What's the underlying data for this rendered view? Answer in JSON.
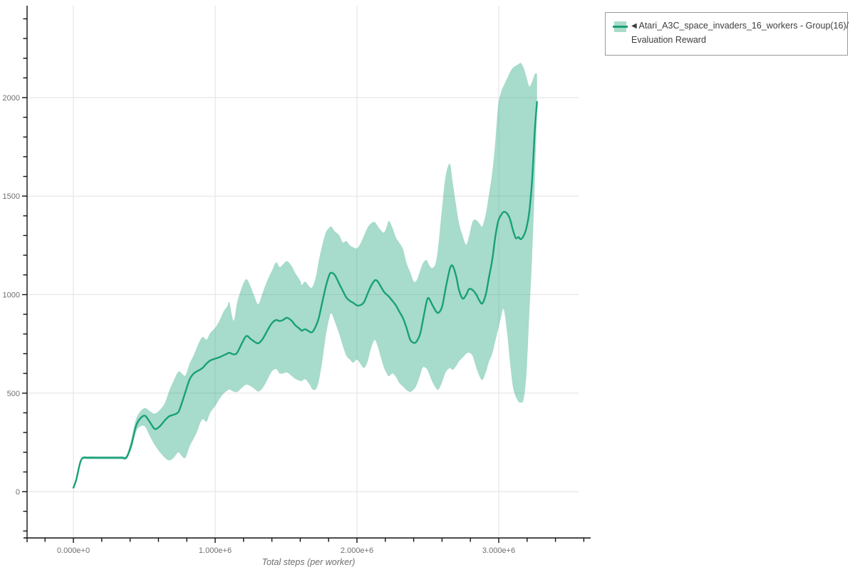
{
  "legend": {
    "marker": "◀",
    "series_label_line1": "Atari_A3C_space_invaders_16_workers - Group(16)/",
    "series_label_line2": "Evaluation Reward"
  },
  "colors": {
    "line": "#18a077",
    "band_fill": "#18a077",
    "band_opacity": 0.38,
    "swatch_band": "#a9dcc8",
    "grid": "#e2e2e2",
    "spine": "#111111",
    "tick_label": "#6f6f6f",
    "axis_title": "#6f6f6f",
    "legend_text": "#3d3d3d"
  },
  "chart_data": {
    "type": "line",
    "title": "",
    "xlabel": "Total steps (per worker)",
    "ylabel": "",
    "x_unit": "steps (values below in millions)",
    "xlim": [
      -0.33,
      3.65
    ],
    "ylim": [
      -235,
      2466
    ],
    "grid": true,
    "legend_position": "top-right-outside",
    "x_axis": {
      "major_ticks": [
        {
          "value": 0,
          "label": "0.000e+0"
        },
        {
          "value": 1,
          "label": "1.000e+6"
        },
        {
          "value": 2,
          "label": "2.000e+6"
        },
        {
          "value": 3,
          "label": "3.000e+6"
        }
      ],
      "minor_ticks": {
        "min": -0.2,
        "max": 3.6,
        "step": 0.2
      },
      "gridline_values": [
        0,
        1,
        2,
        3
      ]
    },
    "y_axis": {
      "major_ticks": [
        {
          "value": 0,
          "label": "0"
        },
        {
          "value": 500,
          "label": "500"
        },
        {
          "value": 1000,
          "label": "1000"
        },
        {
          "value": 1500,
          "label": "1500"
        },
        {
          "value": 2000,
          "label": "2000"
        }
      ],
      "minor_ticks": {
        "min": -200,
        "max": 2400,
        "step": 100
      },
      "gridline_values": [
        0,
        500,
        1000,
        1500,
        2000
      ]
    },
    "series": [
      {
        "name": "Atari_A3C_space_invaders_16_workers - Group(16)/Evaluation Reward",
        "x": [
          0.0,
          0.02,
          0.045,
          0.065,
          0.1,
          0.15,
          0.2,
          0.25,
          0.3,
          0.34,
          0.375,
          0.41,
          0.44,
          0.47,
          0.505,
          0.54,
          0.575,
          0.61,
          0.645,
          0.675,
          0.705,
          0.74,
          0.765,
          0.79,
          0.82,
          0.845,
          0.87,
          0.895,
          0.915,
          0.94,
          0.965,
          1.0,
          1.03,
          1.06,
          1.085,
          1.1,
          1.13,
          1.155,
          1.19,
          1.22,
          1.25,
          1.28,
          1.305,
          1.335,
          1.37,
          1.4,
          1.43,
          1.455,
          1.48,
          1.505,
          1.535,
          1.565,
          1.6,
          1.61,
          1.635,
          1.665,
          1.685,
          1.71,
          1.73,
          1.755,
          1.78,
          1.805,
          1.82,
          1.845,
          1.875,
          1.9,
          1.925,
          1.95,
          1.975,
          2.0,
          2.025,
          2.05,
          2.075,
          2.1,
          2.125,
          2.145,
          2.165,
          2.19,
          2.21,
          2.225,
          2.25,
          2.275,
          2.3,
          2.325,
          2.35,
          2.375,
          2.4,
          2.42,
          2.445,
          2.465,
          2.49,
          2.505,
          2.53,
          2.555,
          2.575,
          2.6,
          2.625,
          2.655,
          2.675,
          2.7,
          2.72,
          2.745,
          2.77,
          2.79,
          2.815,
          2.84,
          2.865,
          2.885,
          2.91,
          2.93,
          2.955,
          2.975,
          2.995,
          3.015,
          3.035,
          3.06,
          3.08,
          3.1,
          3.12,
          3.14,
          3.155,
          3.175,
          3.195,
          3.215,
          3.235,
          3.255,
          3.27
        ],
        "y": [
          20,
          60,
          140,
          170,
          172,
          172,
          172,
          172,
          172,
          172,
          174,
          240,
          330,
          370,
          385,
          352,
          318,
          332,
          362,
          382,
          390,
          404,
          450,
          506,
          570,
          597,
          610,
          620,
          630,
          651,
          665,
          675,
          682,
          692,
          700,
          705,
          697,
          705,
          755,
          790,
          775,
          760,
          753,
          775,
          820,
          855,
          871,
          866,
          872,
          883,
          870,
          845,
          824,
          817,
          824,
          812,
          810,
          840,
          880,
          960,
          1040,
          1100,
          1111,
          1098,
          1055,
          1020,
          985,
          968,
          958,
          945,
          947,
          962,
          1005,
          1045,
          1072,
          1068,
          1045,
          1015,
          1000,
          990,
          968,
          945,
          912,
          880,
          830,
          772,
          755,
          762,
          800,
          868,
          960,
          983,
          950,
          918,
          908,
          938,
          1030,
          1130,
          1146,
          1092,
          1022,
          980,
          998,
          1028,
          1024,
          1002,
          968,
          956,
          1005,
          1085,
          1180,
          1290,
          1370,
          1402,
          1420,
          1411,
          1382,
          1328,
          1287,
          1292,
          1281,
          1298,
          1338,
          1418,
          1580,
          1840,
          1978
        ],
        "band_lower": [
          20,
          50,
          130,
          163,
          165,
          165,
          165,
          165,
          165,
          165,
          166,
          220,
          300,
          330,
          330,
          280,
          235,
          200,
          172,
          158,
          170,
          199,
          180,
          172,
          230,
          265,
          300,
          350,
          368,
          355,
          400,
          434,
          470,
          498,
          512,
          518,
          508,
          506,
          528,
          543,
          535,
          520,
          508,
          525,
          570,
          610,
          622,
          600,
          600,
          605,
          590,
          572,
          562,
          561,
          570,
          545,
          520,
          520,
          560,
          660,
          790,
          880,
          904,
          860,
          800,
          740,
          690,
          670,
          655,
          670,
          648,
          628,
          660,
          730,
          770,
          740,
          690,
          630,
          600,
          586,
          600,
          582,
          550,
          533,
          515,
          506,
          518,
          540,
          590,
          630,
          625,
          605,
          560,
          527,
          518,
          555,
          605,
          627,
          618,
          638,
          662,
          680,
          699,
          705,
          690,
          632,
          585,
          567,
          608,
          658,
          702,
          762,
          822,
          882,
          925,
          800,
          652,
          532,
          482,
          456,
          452,
          468,
          595,
          895,
          1190,
          1580,
          1930
        ],
        "band_upper": [
          20,
          70,
          150,
          177,
          179,
          179,
          179,
          179,
          179,
          180,
          185,
          270,
          365,
          405,
          424,
          408,
          396,
          415,
          450,
          510,
          560,
          609,
          600,
          590,
          650,
          687,
          730,
          770,
          785,
          772,
          805,
          832,
          868,
          915,
          940,
          960,
          868,
          960,
          1040,
          1079,
          1040,
          985,
          952,
          1010,
          1075,
          1121,
          1164,
          1140,
          1155,
          1170,
          1150,
          1110,
          1070,
          1049,
          1066,
          1040,
          1038,
          1090,
          1170,
          1250,
          1315,
          1340,
          1345,
          1320,
          1302,
          1265,
          1272,
          1250,
          1240,
          1235,
          1260,
          1300,
          1340,
          1362,
          1368,
          1350,
          1330,
          1315,
          1345,
          1374,
          1340,
          1290,
          1262,
          1230,
          1160,
          1115,
          1068,
          1072,
          1120,
          1158,
          1176,
          1155,
          1135,
          1160,
          1255,
          1440,
          1600,
          1664,
          1570,
          1450,
          1362,
          1300,
          1254,
          1295,
          1370,
          1379,
          1360,
          1348,
          1415,
          1505,
          1625,
          1770,
          1955,
          2025,
          2062,
          2098,
          2130,
          2152,
          2162,
          2170,
          2176,
          2152,
          2105,
          2058,
          2080,
          2120,
          2122
        ]
      }
    ]
  }
}
